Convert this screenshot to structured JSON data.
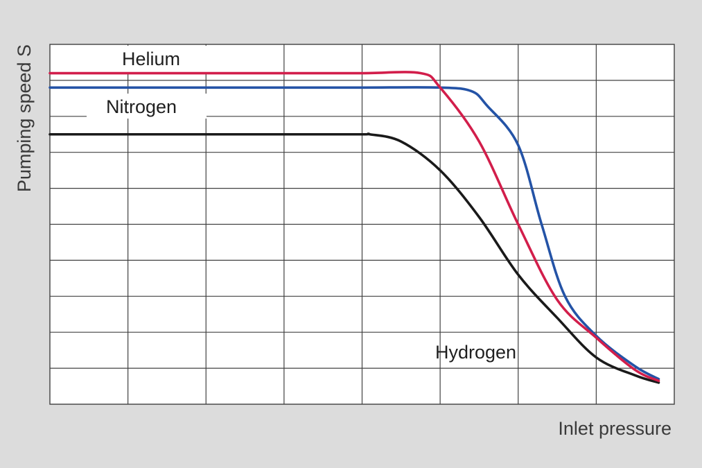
{
  "chart_data": {
    "type": "line",
    "xlabel": "Inlet pressure",
    "ylabel": "Pumping speed S",
    "xlim": [
      0,
      8
    ],
    "ylim": [
      0,
      10
    ],
    "grid": true,
    "series": [
      {
        "name": "Helium",
        "color": "#d21e4b",
        "x": [
          0,
          1,
          2,
          3,
          4,
          4.75,
          5,
          5.5,
          6,
          6.5,
          7,
          7.5,
          7.8
        ],
        "y": [
          9.2,
          9.2,
          9.2,
          9.2,
          9.2,
          9.2,
          8.8,
          7.3,
          5.0,
          2.9,
          1.85,
          0.95,
          0.65
        ]
      },
      {
        "name": "Nitrogen",
        "color": "#2453a6",
        "x": [
          0,
          1,
          2,
          3,
          4,
          5,
          5.4,
          5.6,
          6,
          6.3,
          6.6,
          7,
          7.5,
          7.8
        ],
        "y": [
          8.8,
          8.8,
          8.8,
          8.8,
          8.8,
          8.8,
          8.7,
          8.3,
          7.2,
          5.0,
          3.0,
          1.9,
          1.05,
          0.7
        ]
      },
      {
        "name": "Hydrogen",
        "color": "#1a1a1a",
        "x": [
          0,
          1,
          2,
          3,
          4,
          4.1,
          4.5,
          5,
          5.5,
          6,
          6.5,
          7,
          7.5,
          7.8
        ],
        "y": [
          7.5,
          7.5,
          7.5,
          7.5,
          7.5,
          7.5,
          7.3,
          6.5,
          5.2,
          3.6,
          2.4,
          1.3,
          0.8,
          0.6
        ]
      }
    ]
  }
}
